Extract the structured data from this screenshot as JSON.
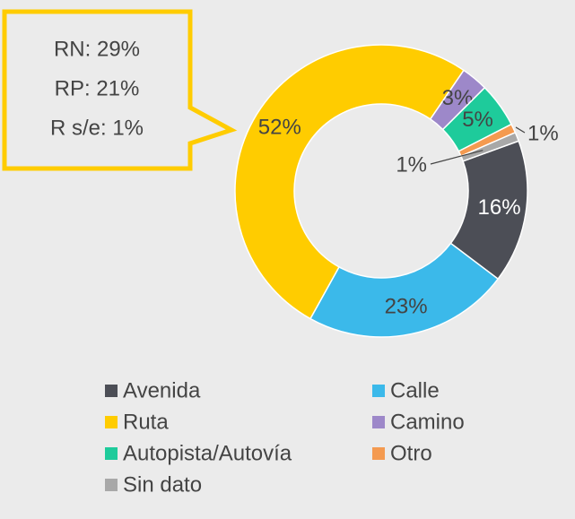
{
  "chart_data": {
    "type": "donut",
    "categories": [
      "Avenida",
      "Calle",
      "Ruta",
      "Camino",
      "Autopista/Autovía",
      "Otro",
      "Sin dato"
    ],
    "values": [
      16,
      23,
      52,
      3,
      5,
      1,
      1
    ],
    "value_labels": [
      "16%",
      "23%",
      "52%",
      "3%",
      "5%",
      "1%",
      "1%"
    ],
    "colors": [
      "#4c4e56",
      "#3bb9ea",
      "#ffcc00",
      "#9d88c9",
      "#1ecb9b",
      "#f49a50",
      "#a8a8a8"
    ],
    "callout": [
      "RN: 29%",
      "RP: 21%",
      "R s/e: 1%"
    ],
    "legend": "bottom"
  }
}
